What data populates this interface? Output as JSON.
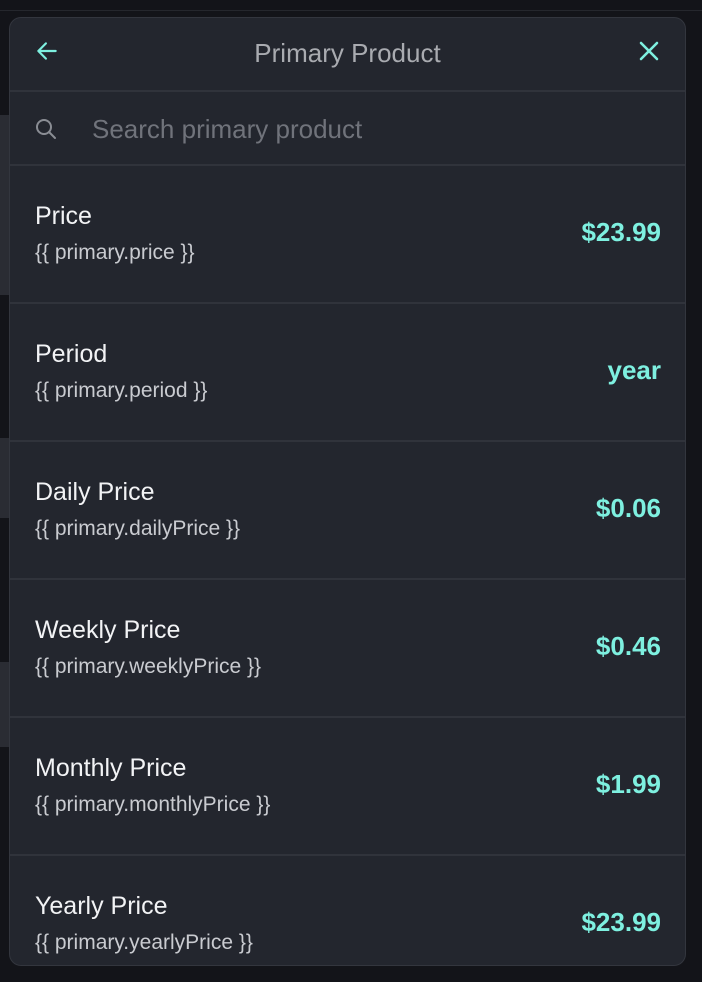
{
  "header": {
    "title": "Primary Product",
    "back_icon": "arrow-left-icon",
    "close_icon": "close-icon"
  },
  "search": {
    "placeholder": "Search primary product",
    "value": ""
  },
  "accent_color": "#7ef0e0",
  "items": [
    {
      "name": "Price",
      "variable": "{{ primary.price }}",
      "value": "$23.99"
    },
    {
      "name": "Period",
      "variable": "{{ primary.period }}",
      "value": "year"
    },
    {
      "name": "Daily Price",
      "variable": "{{ primary.dailyPrice }}",
      "value": "$0.06"
    },
    {
      "name": "Weekly Price",
      "variable": "{{ primary.weeklyPrice }}",
      "value": "$0.46"
    },
    {
      "name": "Monthly Price",
      "variable": "{{ primary.monthlyPrice }}",
      "value": "$1.99"
    },
    {
      "name": "Yearly Price",
      "variable": "{{ primary.yearlyPrice }}",
      "value": "$23.99"
    }
  ]
}
